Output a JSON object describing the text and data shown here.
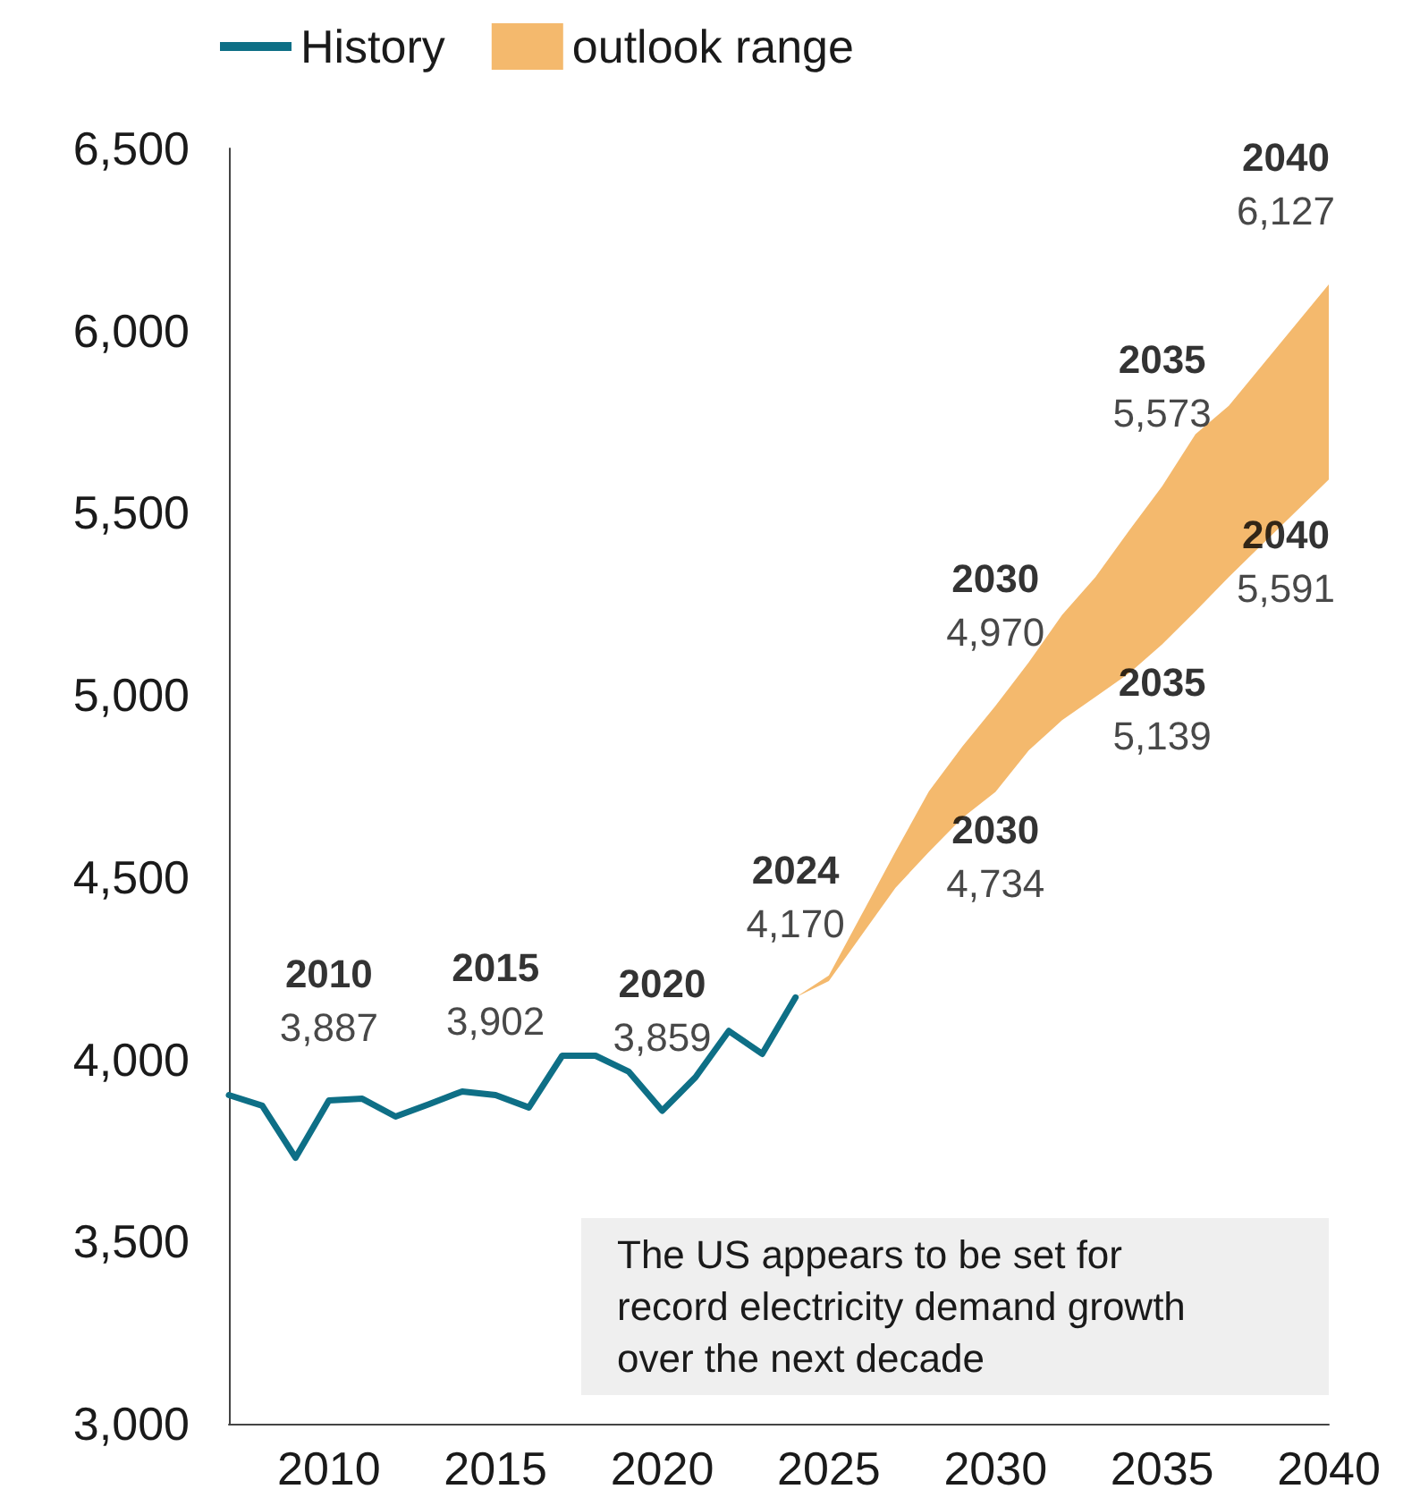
{
  "chart_data": {
    "type": "line",
    "xlim": [
      2007,
      2040
    ],
    "xticks": [
      2010,
      2015,
      2020,
      2025,
      2030,
      2035,
      2040
    ],
    "ylim": [
      3000,
      6500
    ],
    "yticks": [
      {
        "value": 3000,
        "label": "3,000"
      },
      {
        "value": 3500,
        "label": "3,500"
      },
      {
        "value": 4000,
        "label": "4,000"
      },
      {
        "value": 4500,
        "label": "4,500"
      },
      {
        "value": 5000,
        "label": "5,000"
      },
      {
        "value": 5500,
        "label": "5,500"
      },
      {
        "value": 6000,
        "label": "6,000"
      },
      {
        "value": 6500,
        "label": "6,500"
      }
    ],
    "grid": false,
    "legend": "top left",
    "marker": "none",
    "line_style": "solid",
    "series": [
      {
        "name": "History",
        "type": "line",
        "color": "#0e6f86",
        "x": [
          2007,
          2008,
          2009,
          2010,
          2011,
          2012,
          2013,
          2014,
          2015,
          2016,
          2017,
          2018,
          2019,
          2020,
          2021,
          2022,
          2023,
          2024
        ],
        "values": [
          3902,
          3873,
          3730,
          3887,
          3892,
          3843,
          3877,
          3912,
          3902,
          3868,
          4010,
          4010,
          3966,
          3859,
          3951,
          4078,
          4015,
          4170
        ]
      },
      {
        "name": "outlook range",
        "type": "area",
        "color": "#f4b96d",
        "x": [
          2024,
          2025,
          2026,
          2027,
          2028,
          2029,
          2030,
          2031,
          2032,
          2033,
          2034,
          2035,
          2036,
          2037,
          2038,
          2039,
          2040
        ],
        "values": [
          null,
          null,
          null,
          null,
          null,
          null,
          null,
          null,
          null,
          null,
          null,
          null,
          null,
          null,
          null,
          null,
          null
        ],
        "lower": [
          4170,
          4215,
          4343,
          4471,
          4569,
          4662,
          4734,
          4848,
          4931,
          4995,
          5059,
          5139,
          5230,
          5324,
          5413,
          5502,
          5591
        ],
        "upper": [
          4170,
          4230,
          4400,
          4570,
          4735,
          4858,
          4970,
          5090,
          5220,
          5324,
          5450,
          5573,
          5716,
          5794,
          5905,
          6016,
          6127
        ]
      }
    ],
    "annotations": [
      {
        "text": "2010\n3,887",
        "x": 2010,
        "y": 3887
      },
      {
        "text": "2015\n3,902",
        "x": 2015,
        "y": 3902
      },
      {
        "text": "2020\n3,859",
        "x": 2020,
        "y": 3859
      },
      {
        "text": "2024\n4,170",
        "x": 2024,
        "y": 4170
      },
      {
        "text": "2030\n4,970",
        "x": 2030,
        "y": 4970
      },
      {
        "text": "2035\n5,573",
        "x": 2035,
        "y": 5573
      },
      {
        "text": "2040\n6,127",
        "x": 2040,
        "y": 6127
      },
      {
        "text": "2030\n4,734",
        "x": 2030,
        "y": 4734
      },
      {
        "text": "2035\n5,139",
        "x": 2035,
        "y": 5139
      },
      {
        "text": "2040\n5,591",
        "x": 2040,
        "y": 5591
      },
      "The US appears to be set for record electricity demand growth over the next decade"
    ]
  }
}
